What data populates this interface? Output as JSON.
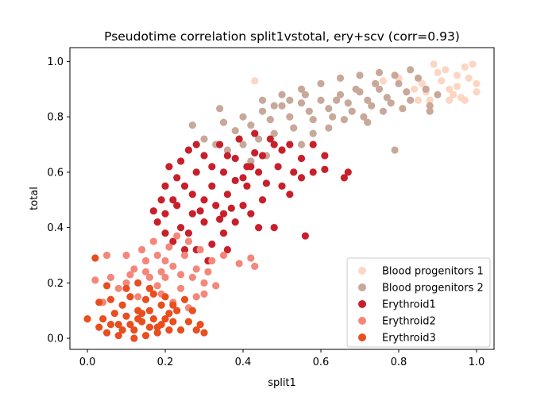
{
  "chart_data": {
    "type": "scatter",
    "title": "Pseudotime correlation split1vstotal, ery+scv (corr=0.93)",
    "xlabel": "split1",
    "ylabel": "total",
    "xlim": [
      -0.045,
      1.045
    ],
    "ylim": [
      -0.04,
      1.05
    ],
    "xticks": [
      "0.0",
      "0.2",
      "0.4",
      "0.6",
      "0.8",
      "1.0"
    ],
    "yticks": [
      "0.0",
      "0.2",
      "0.4",
      "0.6",
      "0.8",
      "1.0"
    ],
    "grid": false,
    "legend_position": "lower-right",
    "series": [
      {
        "name": "Blood progenitors 1",
        "color": "#fcd6c3",
        "points": [
          [
            0.95,
            0.95
          ],
          [
            0.93,
            0.9
          ],
          [
            0.97,
            0.98
          ],
          [
            1.0,
            0.92
          ],
          [
            0.91,
            0.93
          ],
          [
            0.88,
            0.86
          ],
          [
            0.96,
            0.87
          ],
          [
            0.99,
            0.99
          ],
          [
            0.94,
            0.88
          ],
          [
            0.9,
            0.96
          ],
          [
            0.86,
            0.92
          ],
          [
            0.98,
            0.94
          ],
          [
            0.92,
            0.97
          ],
          [
            0.95,
            0.91
          ],
          [
            0.89,
            0.99
          ],
          [
            0.87,
            0.89
          ],
          [
            0.84,
            0.9
          ],
          [
            0.97,
            0.86
          ],
          [
            0.43,
            0.93
          ],
          [
            0.76,
            0.93
          ],
          [
            0.8,
            0.94
          ],
          [
            1.0,
            0.89
          ],
          [
            0.93,
            0.86
          ],
          [
            0.85,
            0.86
          ]
        ]
      },
      {
        "name": "Blood progenitors 2",
        "color": "#c8a899",
        "points": [
          [
            0.35,
            0.78
          ],
          [
            0.4,
            0.8
          ],
          [
            0.45,
            0.82
          ],
          [
            0.5,
            0.84
          ],
          [
            0.55,
            0.85
          ],
          [
            0.6,
            0.86
          ],
          [
            0.65,
            0.88
          ],
          [
            0.7,
            0.89
          ],
          [
            0.75,
            0.9
          ],
          [
            0.8,
            0.92
          ],
          [
            0.85,
            0.94
          ],
          [
            0.38,
            0.75
          ],
          [
            0.42,
            0.77
          ],
          [
            0.47,
            0.79
          ],
          [
            0.52,
            0.8
          ],
          [
            0.57,
            0.82
          ],
          [
            0.62,
            0.83
          ],
          [
            0.67,
            0.85
          ],
          [
            0.72,
            0.86
          ],
          [
            0.77,
            0.87
          ],
          [
            0.82,
            0.89
          ],
          [
            0.3,
            0.72
          ],
          [
            0.33,
            0.7
          ],
          [
            0.36,
            0.68
          ],
          [
            0.4,
            0.7
          ],
          [
            0.44,
            0.72
          ],
          [
            0.48,
            0.74
          ],
          [
            0.53,
            0.76
          ],
          [
            0.58,
            0.79
          ],
          [
            0.63,
            0.8
          ],
          [
            0.68,
            0.82
          ],
          [
            0.73,
            0.84
          ],
          [
            0.78,
            0.85
          ],
          [
            0.83,
            0.86
          ],
          [
            0.87,
            0.9
          ],
          [
            0.55,
            0.9
          ],
          [
            0.6,
            0.92
          ],
          [
            0.65,
            0.94
          ],
          [
            0.7,
            0.95
          ],
          [
            0.75,
            0.96
          ],
          [
            0.5,
            0.88
          ],
          [
            0.45,
            0.86
          ],
          [
            0.58,
            0.74
          ],
          [
            0.62,
            0.76
          ],
          [
            0.66,
            0.79
          ],
          [
            0.71,
            0.8
          ],
          [
            0.76,
            0.82
          ],
          [
            0.81,
            0.83
          ],
          [
            0.88,
            0.84
          ],
          [
            0.9,
            0.88
          ],
          [
            0.83,
            0.97
          ],
          [
            0.79,
            0.68
          ],
          [
            0.88,
            0.82
          ],
          [
            0.72,
            0.78
          ],
          [
            0.34,
            0.83
          ],
          [
            0.27,
            0.77
          ],
          [
            0.5,
            0.68
          ],
          [
            0.55,
            0.7
          ],
          [
            0.46,
            0.66
          ],
          [
            0.42,
            0.64
          ],
          [
            0.64,
            0.86
          ],
          [
            0.69,
            0.9
          ],
          [
            0.74,
            0.92
          ],
          [
            0.79,
            0.95
          ],
          [
            0.52,
            0.86
          ],
          [
            0.48,
            0.84
          ],
          [
            0.56,
            0.88
          ]
        ]
      },
      {
        "name": "Erythroid1",
        "color": "#c8202b",
        "points": [
          [
            0.2,
            0.45
          ],
          [
            0.22,
            0.5
          ],
          [
            0.25,
            0.55
          ],
          [
            0.28,
            0.6
          ],
          [
            0.3,
            0.5
          ],
          [
            0.32,
            0.55
          ],
          [
            0.35,
            0.6
          ],
          [
            0.38,
            0.65
          ],
          [
            0.4,
            0.58
          ],
          [
            0.27,
            0.45
          ],
          [
            0.24,
            0.4
          ],
          [
            0.3,
            0.42
          ],
          [
            0.33,
            0.48
          ],
          [
            0.36,
            0.52
          ],
          [
            0.42,
            0.62
          ],
          [
            0.45,
            0.66
          ],
          [
            0.48,
            0.7
          ],
          [
            0.5,
            0.68
          ],
          [
            0.2,
            0.38
          ],
          [
            0.18,
            0.42
          ],
          [
            0.22,
            0.35
          ],
          [
            0.26,
            0.38
          ],
          [
            0.29,
            0.46
          ],
          [
            0.34,
            0.43
          ],
          [
            0.37,
            0.47
          ],
          [
            0.41,
            0.55
          ],
          [
            0.44,
            0.6
          ],
          [
            0.23,
            0.58
          ],
          [
            0.21,
            0.62
          ],
          [
            0.26,
            0.68
          ],
          [
            0.3,
            0.66
          ],
          [
            0.34,
            0.7
          ],
          [
            0.39,
            0.72
          ],
          [
            0.43,
            0.74
          ],
          [
            0.47,
            0.72
          ],
          [
            0.52,
            0.7
          ],
          [
            0.55,
            0.65
          ],
          [
            0.58,
            0.6
          ],
          [
            0.46,
            0.56
          ],
          [
            0.4,
            0.48
          ],
          [
            0.38,
            0.42
          ],
          [
            0.35,
            0.38
          ],
          [
            0.32,
            0.34
          ],
          [
            0.28,
            0.32
          ],
          [
            0.31,
            0.28
          ],
          [
            0.36,
            0.32
          ],
          [
            0.42,
            0.45
          ],
          [
            0.45,
            0.5
          ],
          [
            0.5,
            0.55
          ],
          [
            0.55,
            0.58
          ],
          [
            0.25,
            0.32
          ],
          [
            0.19,
            0.5
          ],
          [
            0.17,
            0.46
          ],
          [
            0.24,
            0.64
          ],
          [
            0.28,
            0.7
          ],
          [
            0.2,
            0.55
          ],
          [
            0.32,
            0.62
          ],
          [
            0.36,
            0.66
          ],
          [
            0.43,
            0.67
          ],
          [
            0.49,
            0.62
          ],
          [
            0.53,
            0.6
          ],
          [
            0.61,
            0.61
          ],
          [
            0.66,
            0.58
          ],
          [
            0.67,
            0.6
          ],
          [
            0.52,
            0.52
          ],
          [
            0.58,
            0.7
          ],
          [
            0.61,
            0.66
          ],
          [
            0.56,
            0.37
          ],
          [
            0.48,
            0.4
          ],
          [
            0.44,
            0.4
          ],
          [
            0.35,
            0.45
          ],
          [
            0.27,
            0.52
          ],
          [
            0.23,
            0.48
          ],
          [
            0.38,
            0.57
          ],
          [
            0.41,
            0.62
          ]
        ]
      },
      {
        "name": "Erythroid2",
        "color": "#f4877a",
        "points": [
          [
            0.1,
            0.2
          ],
          [
            0.12,
            0.25
          ],
          [
            0.15,
            0.28
          ],
          [
            0.18,
            0.3
          ],
          [
            0.2,
            0.22
          ],
          [
            0.22,
            0.26
          ],
          [
            0.25,
            0.3
          ],
          [
            0.28,
            0.25
          ],
          [
            0.3,
            0.2
          ],
          [
            0.13,
            0.15
          ],
          [
            0.16,
            0.18
          ],
          [
            0.19,
            0.16
          ],
          [
            0.24,
            0.18
          ],
          [
            0.27,
            0.22
          ],
          [
            0.32,
            0.28
          ],
          [
            0.35,
            0.3
          ],
          [
            0.08,
            0.18
          ],
          [
            0.1,
            0.3
          ],
          [
            0.14,
            0.32
          ],
          [
            0.17,
            0.35
          ],
          [
            0.21,
            0.33
          ],
          [
            0.23,
            0.37
          ],
          [
            0.26,
            0.35
          ],
          [
            0.29,
            0.32
          ],
          [
            0.31,
            0.24
          ],
          [
            0.11,
            0.23
          ],
          [
            0.06,
            0.22
          ],
          [
            0.04,
            0.13
          ],
          [
            0.02,
            0.21
          ],
          [
            0.05,
            0.3
          ],
          [
            0.33,
            0.19
          ],
          [
            0.3,
            0.16
          ],
          [
            0.42,
            0.29
          ],
          [
            0.43,
            0.26
          ],
          [
            0.39,
            0.27
          ],
          [
            0.28,
            0.15
          ],
          [
            0.26,
            0.11
          ],
          [
            0.22,
            0.13
          ],
          [
            0.16,
            0.22
          ],
          [
            0.19,
            0.24
          ],
          [
            0.2,
            0.28
          ],
          [
            0.24,
            0.23
          ],
          [
            0.18,
            0.19
          ],
          [
            0.15,
            0.24
          ]
        ]
      },
      {
        "name": "Erythroid3",
        "color": "#e94e1f",
        "points": [
          [
            0.05,
            0.02
          ],
          [
            0.08,
            0.05
          ],
          [
            0.1,
            0.08
          ],
          [
            0.12,
            0.03
          ],
          [
            0.14,
            0.06
          ],
          [
            0.16,
            0.1
          ],
          [
            0.18,
            0.04
          ],
          [
            0.2,
            0.07
          ],
          [
            0.22,
            0.12
          ],
          [
            0.24,
            0.03
          ],
          [
            0.26,
            0.06
          ],
          [
            0.09,
            0.12
          ],
          [
            0.11,
            0.15
          ],
          [
            0.13,
            0.1
          ],
          [
            0.15,
            0.14
          ],
          [
            0.17,
            0.16
          ],
          [
            0.19,
            0.12
          ],
          [
            0.21,
            0.09
          ],
          [
            0.07,
            0.09
          ],
          [
            0.06,
            0.14
          ],
          [
            0.04,
            0.07
          ],
          [
            0.03,
            0.04
          ],
          [
            0.1,
            0.18
          ],
          [
            0.13,
            0.2
          ],
          [
            0.16,
            0.18
          ],
          [
            0.2,
            0.15
          ],
          [
            0.23,
            0.1
          ],
          [
            0.25,
            0.14
          ],
          [
            0.27,
            0.1
          ],
          [
            0.29,
            0.05
          ],
          [
            0.3,
            0.02
          ],
          [
            0.28,
            0.03
          ],
          [
            0.12,
            0.0
          ],
          [
            0.15,
            0.01
          ],
          [
            0.18,
            0.02
          ],
          [
            0.08,
            0.01
          ],
          [
            0.0,
            0.07
          ],
          [
            0.03,
            0.13
          ],
          [
            0.02,
            0.29
          ],
          [
            0.05,
            0.19
          ],
          [
            0.11,
            0.05
          ],
          [
            0.14,
            0.09
          ],
          [
            0.17,
            0.07
          ],
          [
            0.19,
            0.05
          ],
          [
            0.21,
            0.03
          ],
          [
            0.09,
            0.03
          ],
          [
            0.06,
            0.05
          ],
          [
            0.16,
            0.04
          ],
          [
            0.22,
            0.06
          ],
          [
            0.13,
            0.07
          ]
        ]
      }
    ]
  }
}
